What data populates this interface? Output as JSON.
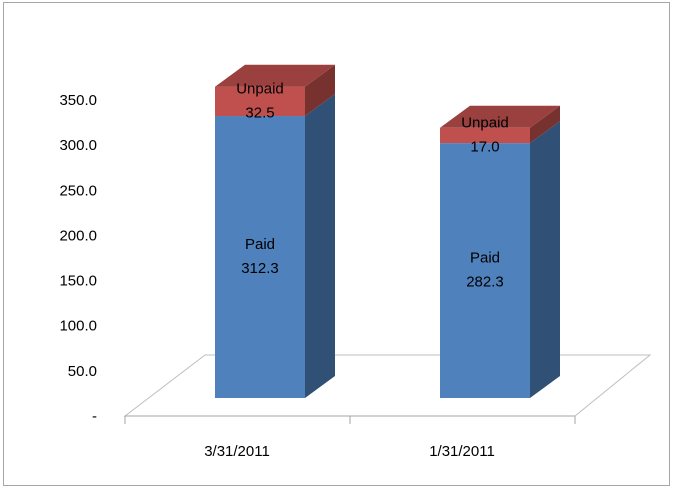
{
  "chart_data": {
    "type": "bar3d_stacked",
    "categories": [
      "3/31/2011",
      "1/31/2011"
    ],
    "series": [
      {
        "name": "Paid",
        "color": "#4f81bd",
        "values": [
          312.3,
          282.3
        ],
        "value_labels": [
          "312.3",
          "282.3"
        ]
      },
      {
        "name": "Unpaid",
        "color": "#c0504d",
        "values": [
          32.5,
          17
        ],
        "value_labels": [
          "32.5",
          "17.0"
        ]
      }
    ],
    "ylim": [
      0,
      350
    ],
    "yticks": [
      {
        "value": 0,
        "label": "-"
      },
      {
        "value": 50,
        "label": "50.0"
      },
      {
        "value": 100,
        "label": "100.0"
      },
      {
        "value": 150,
        "label": "150.0"
      },
      {
        "value": 200,
        "label": "200.0"
      },
      {
        "value": 250,
        "label": "250.0"
      },
      {
        "value": 300,
        "label": "300.0"
      },
      {
        "value": 350,
        "label": "350.0"
      }
    ]
  }
}
